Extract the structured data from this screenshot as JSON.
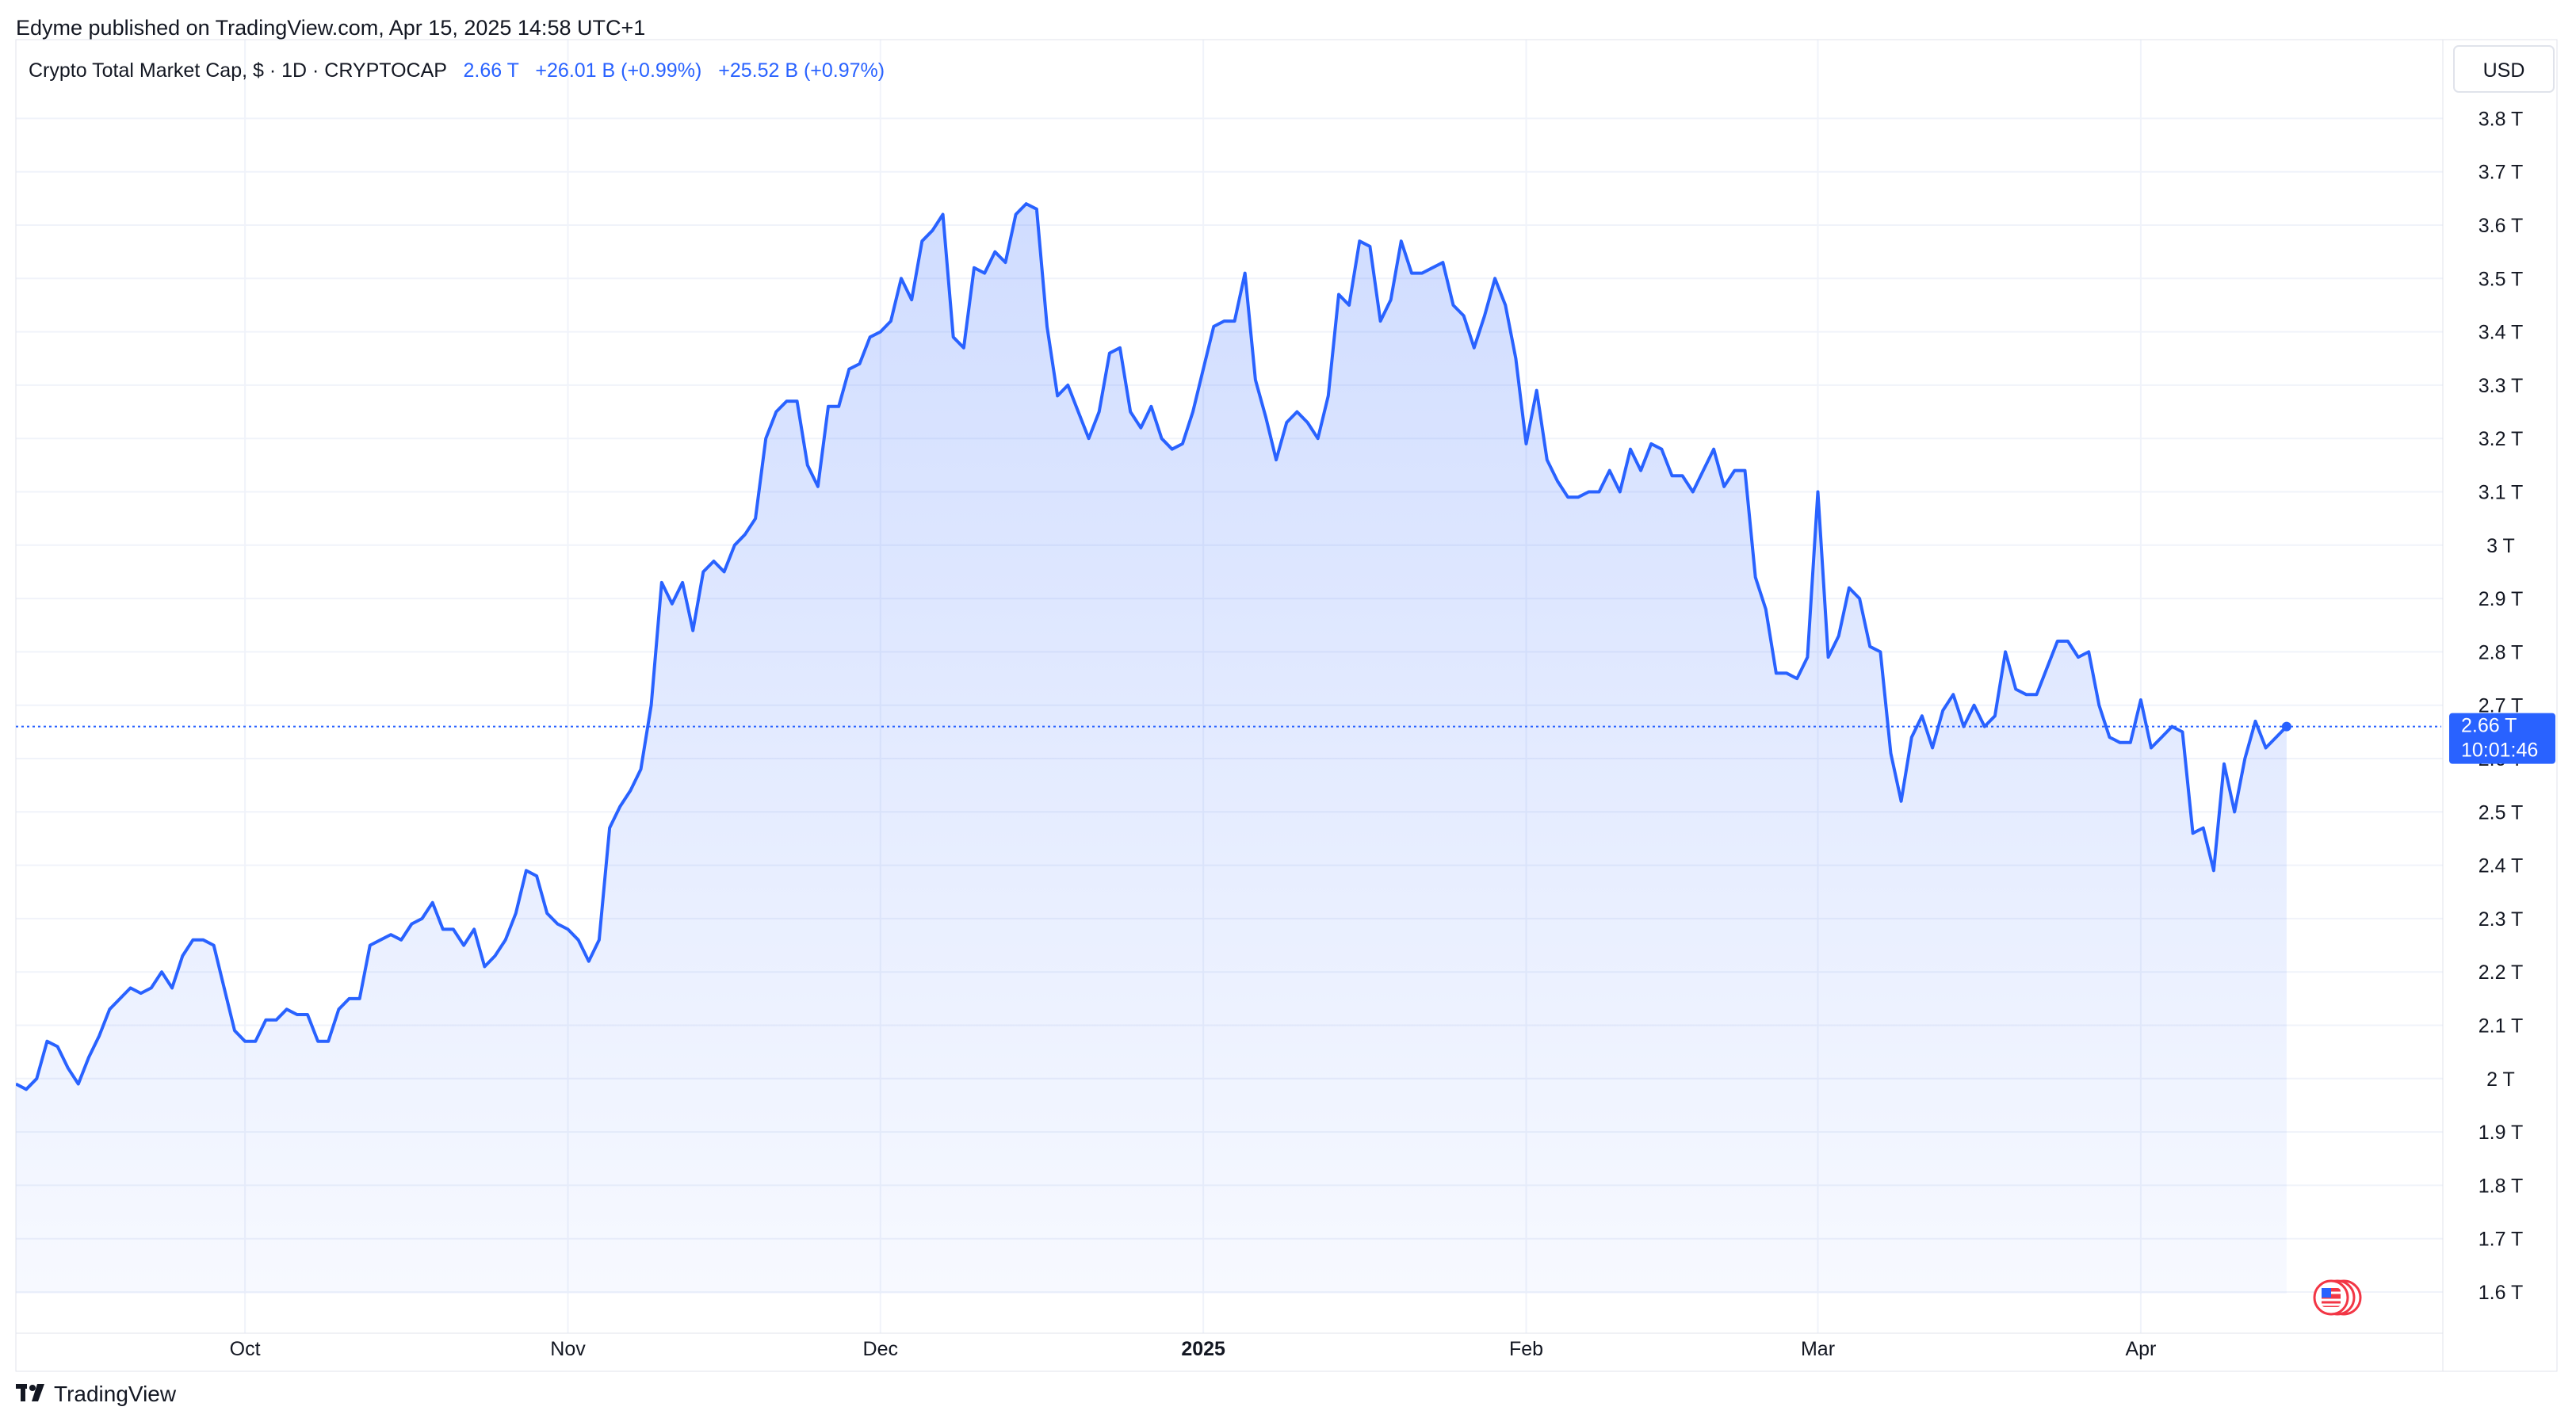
{
  "publisher_line": "Edyme published on TradingView.com, Apr 15, 2025 14:58 UTC+1",
  "header": {
    "symbol_desc": "Crypto Total Market Cap, $ · 1D · CRYPTOCAP",
    "last_value": "2.66 T",
    "change_1": "+26.01 B (+0.99%)",
    "change_2": "+25.52 B (+0.97%)"
  },
  "currency_button": "USD",
  "price_label": {
    "value": "2.66 T",
    "countdown": "10:01:46"
  },
  "footer_brand": "TradingView",
  "flag_icon": "us-flag-icon",
  "colors": {
    "line": "#2962ff",
    "fill": "#2962ff",
    "grid": "#f0f3fa",
    "text": "#131722",
    "accent": "#2962ff"
  },
  "chart_data": {
    "type": "area",
    "title": "Crypto Total Market Cap, $ · 1D · CRYPTOCAP",
    "xlabel": "",
    "ylabel": "",
    "ylim": [
      1.55,
      3.9
    ],
    "y_unit": "T USD",
    "yticks": [
      "1.6 T",
      "1.7 T",
      "1.8 T",
      "1.9 T",
      "2 T",
      "2.1 T",
      "2.2 T",
      "2.3 T",
      "2.4 T",
      "2.5 T",
      "2.6 T",
      "2.7 T",
      "2.8 T",
      "2.9 T",
      "3 T",
      "3.1 T",
      "3.2 T",
      "3.3 T",
      "3.4 T",
      "3.5 T",
      "3.6 T",
      "3.7 T",
      "3.8 T"
    ],
    "ytick_values": [
      1.6,
      1.7,
      1.8,
      1.9,
      2.0,
      2.1,
      2.2,
      2.3,
      2.4,
      2.5,
      2.6,
      2.7,
      2.8,
      2.9,
      3.0,
      3.1,
      3.2,
      3.3,
      3.4,
      3.5,
      3.6,
      3.7,
      3.8
    ],
    "xticks": [
      {
        "label": "Oct",
        "date": "2024-10-01",
        "bold": false
      },
      {
        "label": "Nov",
        "date": "2024-11-01",
        "bold": false
      },
      {
        "label": "Dec",
        "date": "2024-12-01",
        "bold": false
      },
      {
        "label": "2025",
        "date": "2025-01-01",
        "bold": true
      },
      {
        "label": "Feb",
        "date": "2025-02-01",
        "bold": false
      },
      {
        "label": "Mar",
        "date": "2025-03-01",
        "bold": false
      },
      {
        "label": "Apr",
        "date": "2025-04-01",
        "bold": false
      }
    ],
    "x_range": [
      "2024-09-09",
      "2025-04-30"
    ],
    "series": [
      {
        "start_date": "2024-09-09",
        "interval": "1D",
        "values": [
          1.99,
          1.98,
          2.0,
          2.07,
          2.06,
          2.02,
          1.99,
          2.04,
          2.08,
          2.13,
          2.15,
          2.17,
          2.16,
          2.17,
          2.2,
          2.17,
          2.23,
          2.26,
          2.26,
          2.25,
          2.17,
          2.09,
          2.07,
          2.07,
          2.11,
          2.11,
          2.13,
          2.12,
          2.12,
          2.07,
          2.07,
          2.13,
          2.15,
          2.15,
          2.25,
          2.26,
          2.27,
          2.26,
          2.29,
          2.3,
          2.33,
          2.28,
          2.28,
          2.25,
          2.28,
          2.21,
          2.23,
          2.26,
          2.31,
          2.39,
          2.38,
          2.31,
          2.29,
          2.28,
          2.26,
          2.22,
          2.26,
          2.47,
          2.51,
          2.54,
          2.58,
          2.7,
          2.93,
          2.89,
          2.93,
          2.84,
          2.95,
          2.97,
          2.95,
          3.0,
          3.02,
          3.05,
          3.2,
          3.25,
          3.27,
          3.27,
          3.15,
          3.11,
          3.26,
          3.26,
          3.33,
          3.34,
          3.39,
          3.4,
          3.42,
          3.5,
          3.46,
          3.57,
          3.59,
          3.62,
          3.39,
          3.37,
          3.52,
          3.51,
          3.55,
          3.53,
          3.62,
          3.64,
          3.63,
          3.41,
          3.28,
          3.3,
          3.25,
          3.2,
          3.25,
          3.36,
          3.37,
          3.25,
          3.22,
          3.26,
          3.2,
          3.18,
          3.19,
          3.25,
          3.33,
          3.41,
          3.42,
          3.42,
          3.51,
          3.31,
          3.24,
          3.16,
          3.23,
          3.25,
          3.23,
          3.2,
          3.28,
          3.47,
          3.45,
          3.57,
          3.56,
          3.42,
          3.46,
          3.57,
          3.51,
          3.51,
          3.52,
          3.53,
          3.45,
          3.43,
          3.37,
          3.43,
          3.5,
          3.45,
          3.35,
          3.19,
          3.29,
          3.16,
          3.12,
          3.09,
          3.09,
          3.1,
          3.1,
          3.14,
          3.1,
          3.18,
          3.14,
          3.19,
          3.18,
          3.13,
          3.13,
          3.1,
          3.14,
          3.18,
          3.11,
          3.14,
          3.14,
          2.94,
          2.88,
          2.76,
          2.76,
          2.75,
          2.79,
          3.1,
          2.79,
          2.83,
          2.92,
          2.9,
          2.81,
          2.8,
          2.61,
          2.52,
          2.64,
          2.68,
          2.62,
          2.69,
          2.72,
          2.66,
          2.7,
          2.66,
          2.68,
          2.8,
          2.73,
          2.72,
          2.72,
          2.77,
          2.82,
          2.82,
          2.79,
          2.8,
          2.7,
          2.64,
          2.63,
          2.63,
          2.71,
          2.62,
          2.64,
          2.66,
          2.65,
          2.46,
          2.47,
          2.39,
          2.59,
          2.5,
          2.6,
          2.67,
          2.62,
          2.64,
          2.66
        ]
      }
    ],
    "last_value": 2.66,
    "grid": true,
    "legend": "none"
  }
}
